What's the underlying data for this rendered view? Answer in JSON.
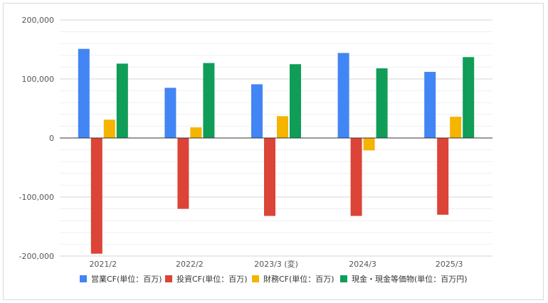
{
  "chart_data": {
    "type": "bar",
    "categories": [
      "2021/2",
      "2022/2",
      "2023/3 (変)",
      "2024/3",
      "2025/3"
    ],
    "series": [
      {
        "name": "営業CF(単位：百万)",
        "color": "#4285f4",
        "values": [
          151000,
          85000,
          91000,
          144000,
          112000
        ]
      },
      {
        "name": "投資CF(単位：百万)",
        "color": "#db4437",
        "values": [
          -196000,
          -120000,
          -132000,
          -132000,
          -130000
        ]
      },
      {
        "name": "財務CF(単位：百万)",
        "color": "#f4b400",
        "values": [
          31000,
          18000,
          37000,
          -21000,
          36000
        ]
      },
      {
        "name": "現金・現金等価物(単位：百万円)",
        "color": "#0f9d58",
        "values": [
          126000,
          127000,
          125000,
          118000,
          137000
        ]
      }
    ],
    "yticks": [
      200000,
      100000,
      0,
      -100000,
      -200000
    ],
    "ytick_labels": [
      "200,000",
      "100,000",
      "0",
      "-100,000",
      "-200,000"
    ],
    "ylim": [
      -200000,
      200000
    ],
    "grid": true,
    "legend_position": "bottom",
    "title": "",
    "xlabel": "",
    "ylabel": ""
  }
}
